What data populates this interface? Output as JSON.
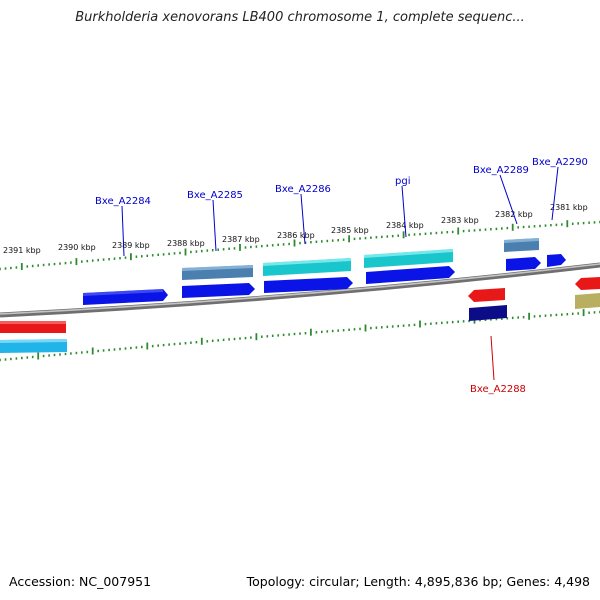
{
  "title": "Burkholderia xenovorans LB400 chromosome 1, complete sequenc...",
  "footer": {
    "accession_label": "Accession: NC_007951",
    "summary_label": "Topology: circular; Length: 4,895,836 bp; Genes: 4,498"
  },
  "ticks": [
    "2391 kbp",
    "2390 kbp",
    "2389 kbp",
    "2388 kbp",
    "2387 kbp",
    "2386 kbp",
    "2385 kbp",
    "2384 kbp",
    "2383 kbp",
    "2382 kbp",
    "2381 kbp"
  ],
  "gene_labels": [
    {
      "text": "Bxe_A2284",
      "color": "#0000cc"
    },
    {
      "text": "Bxe_A2285",
      "color": "#0000cc"
    },
    {
      "text": "Bxe_A2286",
      "color": "#0000cc"
    },
    {
      "text": "pgi",
      "color": "#0000cc"
    },
    {
      "text": "Bxe_A2289",
      "color": "#0000cc"
    },
    {
      "text": "Bxe_A2290",
      "color": "#0000cc"
    },
    {
      "text": "Bxe_A2288",
      "color": "#cc0000"
    }
  ],
  "colors": {
    "backbone": "#8a8a8a",
    "tick_marks": "#2e8b2e",
    "forward_cds": "#0a14e6",
    "forward_cds_steel": "#4a7fb0",
    "forward_cds_cyan": "#18c6cc",
    "reverse_cds": "#e81818",
    "reverse_cds_navy": "#0c0c88",
    "reverse_cds_skyblue": "#20b4e8",
    "reverse_cds_olive": "#b8b060"
  }
}
